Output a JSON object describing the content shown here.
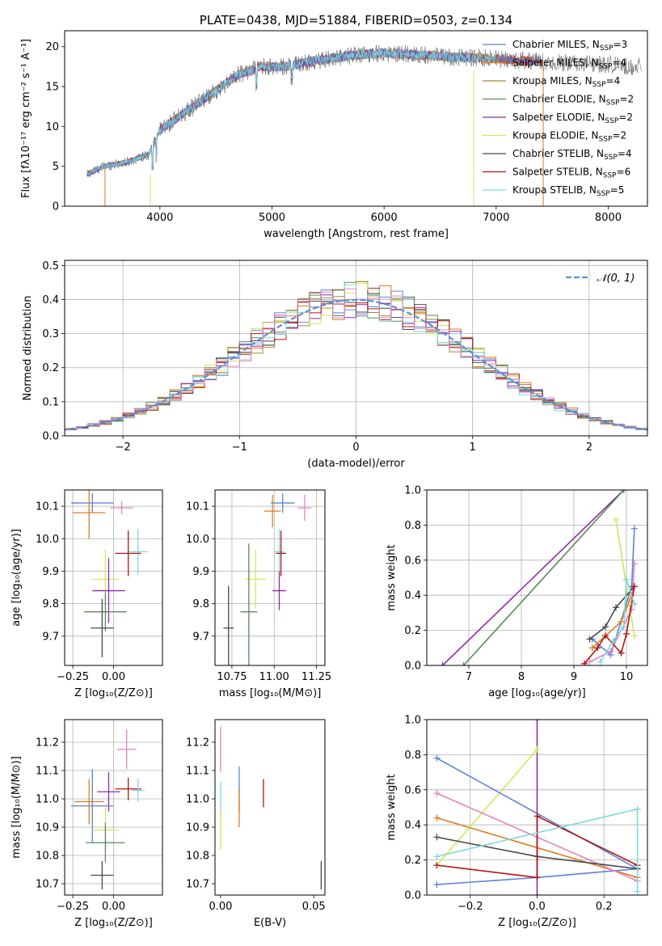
{
  "colors": {
    "chabrier_miles": "#5b83d8",
    "salpeter_miles": "#e07b1f",
    "kroupa_miles": "#a38a2c",
    "chabrier_elodie": "#5a8a5a",
    "salpeter_elodie": "#8e2aab",
    "kroupa_elodie": "#cde85a",
    "chabrier_stelib": "#4a4a4a",
    "salpeter_stelib": "#b41515",
    "kroupa_stelib": "#7ed9d9",
    "pink": "#e383c0",
    "gaussian": "#5b8fd8"
  },
  "chart_data": [
    {
      "id": "spectrum",
      "type": "line",
      "title": "PLATE=0438, MJD=51884, FIBERID=0503, z=0.134",
      "xlabel": "wavelength [Angstrom, rest frame]",
      "ylabel": "Flux [fλ10⁻¹⁷ erg cm⁻² s⁻¹ A⁻¹]",
      "xlim": [
        3150,
        8350
      ],
      "ylim": [
        0,
        22
      ],
      "xticks": [
        4000,
        5000,
        6000,
        7000,
        8000
      ],
      "yticks": [
        0,
        5,
        10,
        15,
        20
      ],
      "grid": false,
      "legend_position": "top-right",
      "legend": [
        {
          "label": "Chabrier MILES, N",
          "sub": "SSP",
          "eq": "=3"
        },
        {
          "label": "Salpeter MILES, N",
          "sub": "SSP",
          "eq": "=4"
        },
        {
          "label": "Kroupa MILES, N",
          "sub": "SSP",
          "eq": "=4"
        },
        {
          "label": "Chabrier ELODIE, N",
          "sub": "SSP",
          "eq": "=2"
        },
        {
          "label": "Salpeter ELODIE, N",
          "sub": "SSP",
          "eq": "=2"
        },
        {
          "label": "Kroupa ELODIE, N",
          "sub": "SSP",
          "eq": "=2"
        },
        {
          "label": "Chabrier STELIB, N",
          "sub": "SSP",
          "eq": "=4"
        },
        {
          "label": "Salpeter STELIB, N",
          "sub": "SSP",
          "eq": "=6"
        },
        {
          "label": "Kroupa STELIB, N",
          "sub": "SSP",
          "eq": "=5"
        }
      ],
      "continuum": {
        "x": [
          3350,
          3500,
          3700,
          3900,
          4000,
          4100,
          4300,
          4500,
          4700,
          4900,
          5100,
          5300,
          5500,
          5800,
          6000,
          6300,
          6600,
          7000,
          7300,
          7600,
          7800,
          8000,
          8200,
          8300
        ],
        "y": [
          4.0,
          5.0,
          5.5,
          6.5,
          9.5,
          10.5,
          12.5,
          14.5,
          16.5,
          17.5,
          17.5,
          18.0,
          18.5,
          19.0,
          19.2,
          19.0,
          18.7,
          18.5,
          18.2,
          18.0,
          17.8,
          17.8,
          17.5,
          17.5
        ]
      }
    },
    {
      "id": "residuals",
      "type": "histogram",
      "xlabel": "(data-model)/error",
      "ylabel": "Normed distribution",
      "xlim": [
        -2.5,
        2.5
      ],
      "ylim": [
        0,
        0.515
      ],
      "xticks": [
        -2,
        -1,
        0,
        1,
        2
      ],
      "yticks": [
        0.0,
        0.1,
        0.2,
        0.3,
        0.4,
        0.5
      ],
      "grid": true,
      "legend_position": "top-right",
      "legend": [
        {
          "label": "𝒩(0, 1)"
        }
      ],
      "bin_width": 0.1
    },
    {
      "id": "age_vs_Z",
      "type": "errorbar",
      "xlabel": "Z [log₁₀(Z/Z⊙)]",
      "ylabel": "age  [log₁₀(age/yr)]",
      "xlim": [
        -0.3,
        0.3
      ],
      "ylim": [
        9.61,
        10.15
      ],
      "xticks": [
        -0.25,
        0.0
      ],
      "yticks": [
        9.7,
        9.8,
        9.9,
        10.0,
        10.1
      ],
      "grid": true,
      "points": [
        {
          "c": "chabrier_miles",
          "x": -0.13,
          "y": 10.11,
          "ex": 0.13,
          "ey": 0.03
        },
        {
          "c": "salpeter_miles",
          "x": -0.15,
          "y": 10.08,
          "ex": 0.1,
          "ey": 0.08
        },
        {
          "c": "pink",
          "x": 0.05,
          "y": 10.095,
          "ex": 0.07,
          "ey": 0.02
        },
        {
          "c": "kroupa_stelib",
          "x": 0.15,
          "y": 9.96,
          "ex": 0.06,
          "ey": 0.07
        },
        {
          "c": "salpeter_stelib",
          "x": 0.09,
          "y": 9.955,
          "ex": 0.08,
          "ey": 0.07
        },
        {
          "c": "kroupa_elodie",
          "x": -0.05,
          "y": 9.875,
          "ex": 0.08,
          "ey": 0.09
        },
        {
          "c": "salpeter_elodie",
          "x": -0.03,
          "y": 9.84,
          "ex": 0.1,
          "ey": 0.1
        },
        {
          "c": "chabrier_elodie",
          "x": -0.05,
          "y": 9.775,
          "ex": 0.13,
          "ey": 0.06
        },
        {
          "c": "chabrier_stelib",
          "x": -0.07,
          "y": 9.725,
          "ex": 0.07,
          "ey": 0.09
        }
      ]
    },
    {
      "id": "age_vs_mass",
      "type": "errorbar",
      "xlabel": "mass [log₁₀(M/M⊙)]",
      "ylabel": "",
      "xlim": [
        10.65,
        11.3
      ],
      "ylim": [
        9.61,
        10.15
      ],
      "xticks": [
        10.75,
        11.0,
        11.25
      ],
      "yticks": [
        9.7,
        9.8,
        9.9,
        10.0,
        10.1
      ],
      "grid": true,
      "points": [
        {
          "c": "chabrier_miles",
          "x": 11.05,
          "y": 10.11,
          "ex": 0.07,
          "ey": 0.03
        },
        {
          "c": "salpeter_miles",
          "x": 10.99,
          "y": 10.085,
          "ex": 0.05,
          "ey": 0.05
        },
        {
          "c": "pink",
          "x": 11.18,
          "y": 10.095,
          "ex": 0.04,
          "ey": 0.04
        },
        {
          "c": "kroupa_stelib",
          "x": 11.03,
          "y": 9.96,
          "ex": 0.03,
          "ey": 0.07
        },
        {
          "c": "salpeter_stelib",
          "x": 11.04,
          "y": 9.955,
          "ex": 0.03,
          "ey": 0.07
        },
        {
          "c": "kroupa_elodie",
          "x": 10.89,
          "y": 9.875,
          "ex": 0.06,
          "ey": 0.09
        },
        {
          "c": "salpeter_elodie",
          "x": 11.03,
          "y": 9.84,
          "ex": 0.04,
          "ey": 0.06
        },
        {
          "c": "chabrier_elodie",
          "x": 10.85,
          "y": 9.775,
          "ex": 0.05,
          "ey": 0.21
        },
        {
          "c": "chabrier_stelib",
          "x": 10.73,
          "y": 9.725,
          "ex": 0.03,
          "ey": 0.13
        }
      ]
    },
    {
      "id": "weight_vs_age",
      "type": "line",
      "xlabel": "age  [log₁₀(age/yr)]",
      "ylabel": "mass weight",
      "xlim": [
        6.2,
        10.4
      ],
      "ylim": [
        0,
        1.0
      ],
      "xticks": [
        7,
        8,
        9,
        10
      ],
      "yticks": [
        0.0,
        0.2,
        0.4,
        0.6,
        0.8,
        1.0
      ],
      "grid": true,
      "series": [
        {
          "c": "salpeter_elodie",
          "x": [
            6.5,
            9.95
          ],
          "y": [
            0.0,
            1.0
          ]
        },
        {
          "c": "chabrier_elodie",
          "x": [
            6.9,
            9.95
          ],
          "y": [
            0.0,
            1.0
          ]
        },
        {
          "c": "kroupa_elodie",
          "x": [
            9.8,
            10.15
          ],
          "y": [
            0.83,
            0.17
          ]
        },
        {
          "c": "chabrier_miles",
          "x": [
            9.35,
            9.7,
            10.1,
            10.15
          ],
          "y": [
            0.15,
            0.06,
            0.45,
            0.78
          ]
        },
        {
          "c": "salpeter_miles",
          "x": [
            9.35,
            9.9,
            10.1,
            10.15
          ],
          "y": [
            0.1,
            0.25,
            0.4,
            0.45
          ]
        },
        {
          "c": "pink",
          "x": [
            9.3,
            9.7,
            10.1,
            10.15
          ],
          "y": [
            0.02,
            0.08,
            0.32,
            0.58
          ]
        },
        {
          "c": "chabrier_stelib",
          "x": [
            9.3,
            9.6,
            9.8,
            10.15
          ],
          "y": [
            0.15,
            0.22,
            0.33,
            0.45
          ]
        },
        {
          "c": "salpeter_stelib",
          "x": [
            9.2,
            9.45,
            9.6,
            9.9,
            10.0,
            10.15
          ],
          "y": [
            0.01,
            0.1,
            0.17,
            0.07,
            0.18,
            0.45
          ]
        },
        {
          "c": "kroupa_stelib",
          "x": [
            9.5,
            9.75,
            9.95,
            10.0,
            10.15
          ],
          "y": [
            0.02,
            0.14,
            0.22,
            0.49,
            0.35
          ]
        }
      ]
    },
    {
      "id": "mass_vs_Z",
      "type": "errorbar",
      "xlabel": "Z [log₁₀(Z/Z⊙)]",
      "ylabel": "mass [log₁₀(M/M⊙)]",
      "xlim": [
        -0.3,
        0.3
      ],
      "ylim": [
        10.66,
        11.28
      ],
      "xticks": [
        -0.25,
        0.0
      ],
      "yticks": [
        10.7,
        10.8,
        10.9,
        11.0,
        11.1,
        11.2
      ],
      "grid": true,
      "points": [
        {
          "c": "pink",
          "x": 0.08,
          "y": 11.175,
          "ex": 0.06,
          "ey": 0.07
        },
        {
          "c": "salpeter_stelib",
          "x": 0.09,
          "y": 11.035,
          "ex": 0.08,
          "ey": 0.04
        },
        {
          "c": "kroupa_stelib",
          "x": 0.15,
          "y": 11.03,
          "ex": 0.04,
          "ey": 0.04
        },
        {
          "c": "salpeter_elodie",
          "x": -0.03,
          "y": 11.025,
          "ex": 0.07,
          "ey": 0.07
        },
        {
          "c": "chabrier_miles",
          "x": -0.13,
          "y": 10.975,
          "ex": 0.13,
          "ey": 0.13
        },
        {
          "c": "salpeter_miles",
          "x": -0.15,
          "y": 10.99,
          "ex": 0.09,
          "ey": 0.08
        },
        {
          "c": "kroupa_elodie",
          "x": -0.05,
          "y": 10.89,
          "ex": 0.08,
          "ey": 0.08
        },
        {
          "c": "chabrier_elodie",
          "x": -0.05,
          "y": 10.845,
          "ex": 0.12,
          "ey": 0.07
        },
        {
          "c": "chabrier_stelib",
          "x": -0.07,
          "y": 10.73,
          "ex": 0.07,
          "ey": 0.05
        }
      ]
    },
    {
      "id": "mass_vs_ebv",
      "type": "errorbar",
      "xlabel": "E(B-V)",
      "ylabel": "",
      "xlim": [
        -0.003,
        0.056
      ],
      "ylim": [
        10.66,
        11.28
      ],
      "xticks": [
        0.0,
        0.05
      ],
      "yticks": [
        10.7,
        10.8,
        10.9,
        11.0,
        11.1,
        11.2
      ],
      "grid": false,
      "points": [
        {
          "c": "pink",
          "x": 0.0,
          "y": 11.175,
          "ex": 0,
          "ey": 0.08
        },
        {
          "c": "chabrier_miles",
          "x": 0.01,
          "y": 11.035,
          "ex": 0,
          "ey": 0.08
        },
        {
          "c": "salpeter_stelib",
          "x": 0.023,
          "y": 11.02,
          "ex": 0,
          "ey": 0.05
        },
        {
          "c": "salpeter_miles",
          "x": 0.01,
          "y": 10.97,
          "ex": 0,
          "ey": 0.07
        },
        {
          "c": "kroupa_stelib",
          "x": 0.0,
          "y": 11.0,
          "ex": 0,
          "ey": 0.06
        },
        {
          "c": "kroupa_elodie",
          "x": 0.0,
          "y": 10.89,
          "ex": 0,
          "ey": 0.07
        },
        {
          "c": "chabrier_stelib",
          "x": 0.054,
          "y": 10.73,
          "ex": 0,
          "ey": 0.05
        }
      ]
    },
    {
      "id": "weight_vs_Z",
      "type": "line",
      "xlabel": "Z [log₁₀(Z/Z⊙)]",
      "ylabel": "mass weight",
      "xlim": [
        -0.33,
        0.33
      ],
      "ylim": [
        0,
        1.0
      ],
      "xticks": [
        -0.2,
        0.0,
        0.2
      ],
      "yticks": [
        0.0,
        0.2,
        0.4,
        0.6,
        0.8,
        1.0
      ],
      "grid": true,
      "series": [
        {
          "c": "salpeter_elodie",
          "x": [
            0.0,
            0.0
          ],
          "y": [
            0.0,
            1.0
          ]
        },
        {
          "c": "kroupa_elodie",
          "x": [
            -0.3,
            0.0
          ],
          "y": [
            0.17,
            0.83
          ]
        },
        {
          "c": "chabrier_miles",
          "x": [
            -0.3,
            0.0,
            0.3,
            -0.3
          ],
          "y": [
            0.06,
            0.1,
            0.15,
            0.78
          ]
        },
        {
          "c": "salpeter_miles",
          "x": [
            -0.3,
            0.3
          ],
          "y": [
            0.44,
            0.1
          ]
        },
        {
          "c": "pink",
          "x": [
            -0.3,
            0.3
          ],
          "y": [
            0.58,
            0.08
          ]
        },
        {
          "c": "chabrier_stelib",
          "x": [
            -0.3,
            0.0,
            0.3
          ],
          "y": [
            0.33,
            0.22,
            0.15
          ]
        },
        {
          "c": "salpeter_stelib",
          "x": [
            -0.3,
            0.0,
            0.0,
            0.3
          ],
          "y": [
            0.17,
            0.1,
            0.45,
            0.17
          ]
        },
        {
          "c": "kroupa_stelib",
          "x": [
            -0.3,
            0.3,
            0.3
          ],
          "y": [
            0.22,
            0.49,
            0.02
          ]
        }
      ]
    }
  ]
}
